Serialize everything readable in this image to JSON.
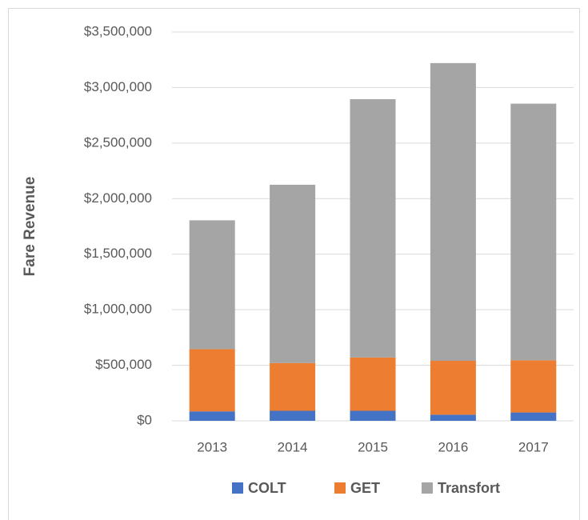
{
  "chart_data": {
    "type": "stacked_bar",
    "y_label": "Fare Revenue",
    "categories": [
      "2013",
      "2014",
      "2015",
      "2016",
      "2017"
    ],
    "series": [
      {
        "name": "COLT",
        "color": "#4472c4",
        "values": [
          85000,
          90000,
          90000,
          55000,
          75000
        ]
      },
      {
        "name": "GET",
        "color": "#ed7d31",
        "values": [
          560000,
          430000,
          480000,
          485000,
          470000
        ]
      },
      {
        "name": "Transfort",
        "color": "#a5a5a5",
        "values": [
          1160000,
          1605000,
          2325000,
          2680000,
          2310000
        ]
      }
    ],
    "ylim": [
      0,
      3500000
    ],
    "yticks": [
      {
        "value": 0,
        "label": "$0"
      },
      {
        "value": 500000,
        "label": "$500,000"
      },
      {
        "value": 1000000,
        "label": "$1,000,000"
      },
      {
        "value": 1500000,
        "label": "$1,500,000"
      },
      {
        "value": 2000000,
        "label": "$2,000,000"
      },
      {
        "value": 2500000,
        "label": "$2,500,000"
      },
      {
        "value": 3000000,
        "label": "$3,000,000"
      },
      {
        "value": 3500000,
        "label": "$3,500,000"
      }
    ],
    "grid": true,
    "legend": "bottom"
  }
}
